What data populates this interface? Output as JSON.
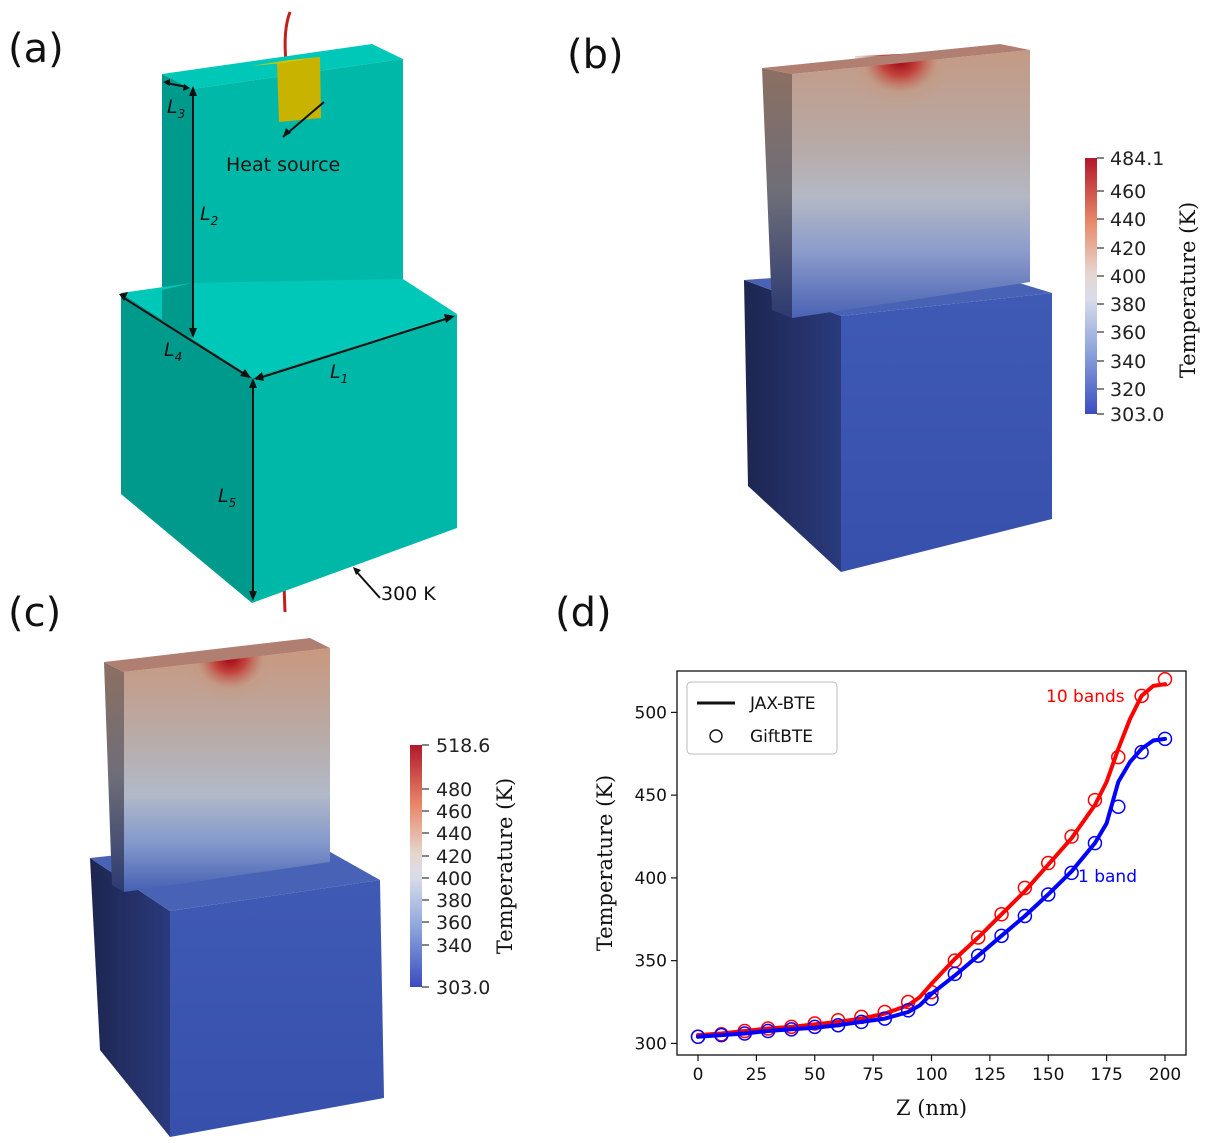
{
  "panels": {
    "a": {
      "label": "(a)",
      "heat_source": "Heat source",
      "boundary": "300 K",
      "dims": [
        {
          "main": "L",
          "sub": "1"
        },
        {
          "main": "L",
          "sub": "2"
        },
        {
          "main": "L",
          "sub": "3"
        },
        {
          "main": "L",
          "sub": "4"
        },
        {
          "main": "L",
          "sub": "5"
        }
      ],
      "colors": {
        "body": "#00b8a8",
        "top": "#00c8b8",
        "side": "#009a8c",
        "heat": "#c8b400",
        "wire": "#c0201a"
      }
    },
    "b": {
      "label": "(b)",
      "colorbar": {
        "max": "484.1",
        "min": "303.0",
        "ticks": [
          "460",
          "440",
          "420",
          "400",
          "380",
          "360",
          "340",
          "320"
        ],
        "title": "Temperature (K)"
      }
    },
    "c": {
      "label": "(c)",
      "colorbar": {
        "max": "518.6",
        "min": "303.0",
        "ticks": [
          "480",
          "460",
          "440",
          "420",
          "400",
          "380",
          "360",
          "340"
        ],
        "title": "Temperature (K)"
      }
    },
    "d": {
      "label": "(d)"
    }
  },
  "chart_data": {
    "type": "line",
    "xlabel": "Z (nm)",
    "ylabel": "Temperature (K)",
    "xlim": [
      -9,
      209
    ],
    "ylim": [
      293,
      525
    ],
    "xticks": [
      0,
      25,
      50,
      75,
      100,
      125,
      150,
      175,
      200
    ],
    "yticks": [
      300,
      350,
      400,
      450,
      500
    ],
    "legend": [
      {
        "label": "JAX-BTE",
        "style": "line"
      },
      {
        "label": "GiftBTE",
        "style": "circle"
      }
    ],
    "series": [
      {
        "name": "10 bands",
        "color": "#ff0000",
        "line_x": [
          0,
          10,
          20,
          30,
          40,
          50,
          60,
          70,
          80,
          90,
          95,
          100,
          110,
          120,
          130,
          140,
          150,
          160,
          170,
          175,
          180,
          185,
          190,
          195,
          200
        ],
        "line_y": [
          305,
          306,
          307.5,
          309,
          310,
          311.5,
          313,
          315,
          318,
          323,
          328,
          336,
          351,
          364,
          378,
          392,
          408,
          424,
          444,
          458,
          478,
          496,
          510,
          516,
          517
        ],
        "points_x": [
          0,
          10,
          20,
          30,
          40,
          50,
          60,
          70,
          80,
          90,
          100,
          110,
          120,
          130,
          140,
          150,
          160,
          170,
          180,
          190,
          200
        ],
        "points_y": [
          304,
          305.5,
          307.5,
          309,
          310,
          312,
          314,
          316,
          319,
          325,
          331,
          350,
          364,
          378,
          394,
          409,
          425,
          447,
          473,
          510,
          520
        ]
      },
      {
        "name": "1 band",
        "color": "#0000ff",
        "line_x": [
          0,
          10,
          20,
          30,
          40,
          50,
          60,
          70,
          80,
          90,
          95,
          100,
          110,
          120,
          130,
          140,
          150,
          160,
          170,
          175,
          180,
          185,
          190,
          195,
          200
        ],
        "line_y": [
          304,
          305,
          306,
          307.5,
          308.5,
          309.5,
          311,
          313,
          315,
          319,
          323,
          330,
          341,
          353,
          365,
          377,
          390,
          404,
          421,
          433,
          458,
          470,
          478,
          483,
          484
        ],
        "points_x": [
          0,
          10,
          20,
          30,
          40,
          50,
          60,
          70,
          80,
          90,
          100,
          110,
          120,
          130,
          140,
          150,
          160,
          170,
          180,
          190,
          200
        ],
        "points_y": [
          304,
          305,
          306,
          307.5,
          308.5,
          310,
          311,
          313,
          315,
          320,
          327,
          342,
          353,
          365,
          377,
          390,
          403,
          421,
          443,
          476,
          484
        ]
      }
    ]
  }
}
